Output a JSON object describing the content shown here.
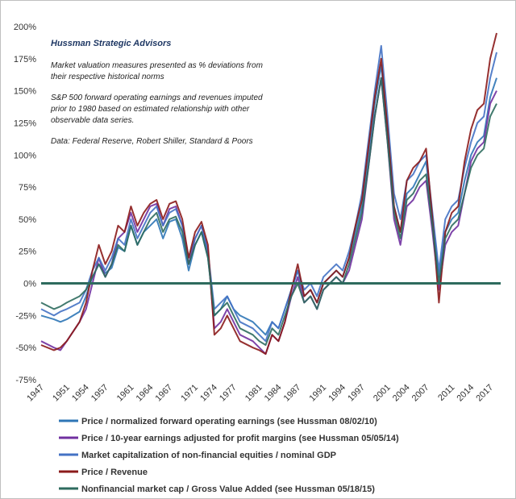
{
  "chart_data": {
    "type": "line",
    "title": "",
    "xlabel": "",
    "ylabel": "",
    "xlim": [
      1947,
      2018
    ],
    "ylim": [
      -75,
      200
    ],
    "y_unit": "%",
    "y_ticks": [
      200,
      175,
      150,
      125,
      100,
      75,
      50,
      25,
      0,
      -25,
      -50,
      -75
    ],
    "y_tick_labels": [
      "200%",
      "175%",
      "150%",
      "125%",
      "100%",
      "75%",
      "50%",
      "25%",
      "0%",
      "-25%",
      "-50%",
      "-75%"
    ],
    "x_ticks": [
      1947,
      1951,
      1954,
      1957,
      1961,
      1964,
      1967,
      1971,
      1974,
      1977,
      1981,
      1984,
      1987,
      1991,
      1994,
      1997,
      2001,
      2004,
      2007,
      2011,
      2014,
      2017
    ],
    "x_tick_labels": [
      "1947",
      "1951",
      "1954",
      "1957",
      "1961",
      "1964",
      "1967",
      "1971",
      "1974",
      "1977",
      "1981",
      "1984",
      "1987",
      "1991",
      "1994",
      "1997",
      "2001",
      "2004",
      "2007",
      "2011",
      "2014",
      "2017"
    ],
    "grid": false,
    "legend_position": "bottom",
    "annotations": {
      "title": "Hussman Strategic Advisors",
      "line1": "Market valuation measures presented  as % deviations from",
      "line2": "their respective  historical  norms",
      "line3": "S&P 500 forward  operating earnings and revenues imputed",
      "line4": "prior to 1980 based on estimated relationship with other",
      "line5": "observable data series.",
      "line6": "Data: Federal Reserve,  Robert Shiller, Standard & Poors"
    },
    "x": [
      1947,
      1949,
      1950,
      1951,
      1953,
      1954,
      1955,
      1956,
      1957,
      1958,
      1959,
      1960,
      1961,
      1962,
      1963,
      1964,
      1965,
      1966,
      1967,
      1968,
      1969,
      1970,
      1971,
      1972,
      1973,
      1974,
      1975,
      1976,
      1977,
      1978,
      1980,
      1981,
      1982,
      1983,
      1984,
      1985,
      1986,
      1987,
      1988,
      1989,
      1990,
      1991,
      1992,
      1993,
      1994,
      1995,
      1996,
      1997,
      1998,
      1999,
      2000,
      2001,
      2002,
      2003,
      2004,
      2005,
      2006,
      2007,
      2008,
      2009,
      2010,
      2011,
      2012,
      2013,
      2014,
      2015,
      2016,
      2017,
      2018
    ],
    "series": [
      {
        "name": "Price / normalized forward operating earnings (see Hussman 08/02/10)",
        "color": "#2e75b6",
        "values": [
          -25,
          -28,
          -30,
          -28,
          -22,
          -10,
          5,
          15,
          8,
          12,
          28,
          25,
          45,
          30,
          40,
          45,
          50,
          35,
          48,
          50,
          35,
          10,
          30,
          40,
          20,
          -25,
          -20,
          -10,
          -20,
          -25,
          -30,
          -35,
          -40,
          -30,
          -35,
          -20,
          -5,
          10,
          -10,
          -5,
          -15,
          0,
          5,
          10,
          5,
          20,
          40,
          60,
          100,
          140,
          170,
          120,
          60,
          40,
          70,
          75,
          85,
          95,
          50,
          5,
          40,
          50,
          55,
          80,
          100,
          110,
          115,
          145,
          160
        ]
      },
      {
        "name": "Price / 10-year earnings adjusted for profit margins (see Hussman 05/05/14)",
        "color": "#7030a0",
        "values": [
          -45,
          -50,
          -52,
          -45,
          -30,
          -20,
          0,
          20,
          5,
          15,
          35,
          40,
          55,
          40,
          50,
          60,
          62,
          45,
          58,
          60,
          45,
          15,
          35,
          45,
          25,
          -35,
          -30,
          -20,
          -30,
          -40,
          -45,
          -50,
          -55,
          -40,
          -45,
          -30,
          -10,
          5,
          -15,
          -10,
          -20,
          -5,
          0,
          5,
          0,
          10,
          30,
          50,
          90,
          130,
          160,
          110,
          50,
          30,
          60,
          65,
          75,
          80,
          40,
          -5,
          30,
          40,
          45,
          70,
          95,
          105,
          110,
          140,
          150
        ]
      },
      {
        "name": "Market capitalization of non-financial equities / nominal GDP",
        "color": "#4472c4",
        "values": [
          -20,
          -25,
          -22,
          -20,
          -15,
          -5,
          10,
          20,
          10,
          20,
          35,
          30,
          50,
          35,
          45,
          55,
          60,
          45,
          55,
          58,
          45,
          20,
          35,
          45,
          25,
          -20,
          -15,
          -10,
          -20,
          -30,
          -35,
          -40,
          -45,
          -30,
          -35,
          -20,
          -5,
          10,
          -5,
          0,
          -10,
          5,
          10,
          15,
          10,
          25,
          45,
          70,
          110,
          150,
          185,
          130,
          70,
          50,
          80,
          85,
          95,
          100,
          55,
          10,
          50,
          60,
          65,
          90,
          110,
          125,
          130,
          160,
          180
        ]
      },
      {
        "name": "Price / Revenue",
        "color": "#8b1a1a",
        "values": [
          -48,
          -52,
          -50,
          -45,
          -30,
          -15,
          10,
          30,
          15,
          25,
          45,
          40,
          60,
          45,
          55,
          62,
          65,
          50,
          62,
          64,
          50,
          20,
          40,
          48,
          30,
          -40,
          -35,
          -25,
          -35,
          -45,
          -50,
          -52,
          -55,
          -40,
          -45,
          -30,
          -5,
          15,
          -10,
          -5,
          -15,
          0,
          5,
          10,
          5,
          20,
          45,
          65,
          105,
          145,
          175,
          120,
          60,
          40,
          80,
          90,
          95,
          105,
          50,
          -15,
          40,
          55,
          60,
          95,
          120,
          135,
          140,
          175,
          195
        ]
      },
      {
        "name": "Nonfinancial market cap / Gross Value Added (see Hussman 05/18/15)",
        "color": "#2e6b5e",
        "values": [
          -15,
          -20,
          -18,
          -15,
          -10,
          -5,
          5,
          15,
          5,
          15,
          30,
          25,
          45,
          30,
          40,
          50,
          55,
          40,
          50,
          52,
          40,
          15,
          30,
          40,
          20,
          -25,
          -20,
          -15,
          -25,
          -35,
          -40,
          -45,
          -48,
          -35,
          -40,
          -25,
          -10,
          0,
          -15,
          -10,
          -20,
          -5,
          0,
          5,
          0,
          15,
          35,
          55,
          90,
          130,
          160,
          110,
          55,
          35,
          65,
          70,
          80,
          85,
          45,
          0,
          35,
          45,
          50,
          70,
          90,
          100,
          105,
          130,
          140
        ]
      }
    ]
  }
}
